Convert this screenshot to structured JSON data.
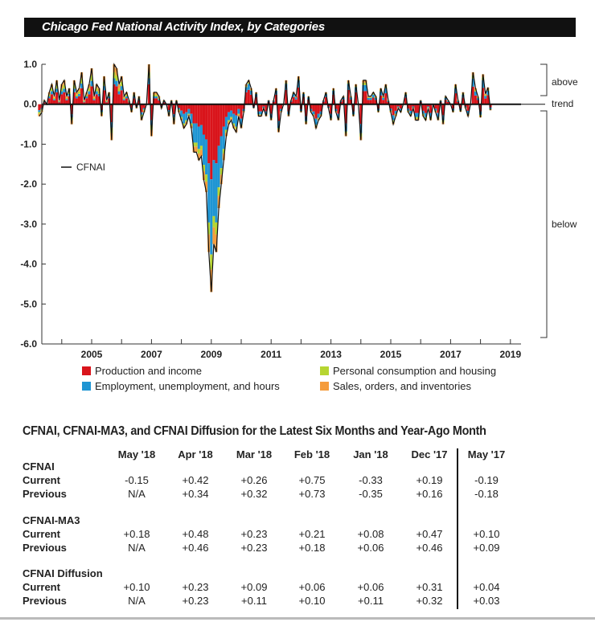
{
  "title": "Chicago Fed National Activity Index, by Categories",
  "chart_data": {
    "type": "bar",
    "stacked": true,
    "title": "Chicago Fed National Activity Index, by Categories",
    "start": {
      "year": 2003,
      "month": 4
    },
    "ylim": [
      -6.0,
      1.0
    ],
    "yticks": [
      "1.0",
      "0.0",
      "-1.0",
      "-2.0",
      "-3.0",
      "-4.0",
      "-5.0",
      "-6.0"
    ],
    "ytick_values": [
      1,
      0,
      -1,
      -2,
      -3,
      -4,
      -5,
      -6
    ],
    "xticks": [
      "2005",
      "2007",
      "2009",
      "2011",
      "2013",
      "2015",
      "2017",
      "2019"
    ],
    "xtick_values": [
      2005,
      2007,
      2009,
      2011,
      2013,
      2015,
      2017,
      2019
    ],
    "xlim": [
      2003.35,
      2019.4
    ],
    "grid": false,
    "line_label": "CFNAI",
    "legend": [
      {
        "name": "Production and income",
        "color": "#d9141b"
      },
      {
        "name": "Employment, unemployment, and hours",
        "color": "#1f95d3"
      },
      {
        "name": "Personal consumption and housing",
        "color": "#b6d531"
      },
      {
        "name": "Sales, orders, and inventories",
        "color": "#f59c3c"
      }
    ],
    "side_labels": {
      "above": "above",
      "trend": "trend",
      "below": "below"
    },
    "cfnai": [
      -0.3,
      -0.2,
      0.1,
      0.0,
      0.3,
      0.5,
      0.2,
      0.6,
      0.1,
      0.5,
      0.6,
      0.2,
      0.4,
      -0.5,
      0.6,
      0.3,
      0.4,
      0.8,
      0.1,
      0.3,
      0.5,
      0.9,
      0.2,
      0.5,
      0.4,
      -0.3,
      0.7,
      0.1,
      0.3,
      -0.9,
      1.0,
      0.9,
      0.5,
      0.7,
      0.2,
      0.3,
      0.1,
      -0.2,
      0.3,
      -0.1,
      0.2,
      -0.4,
      -0.2,
      0.0,
      1.0,
      -0.8,
      0.3,
      0.3,
      0.2,
      -0.1,
      0.1,
      0.0,
      -0.3,
      0.1,
      -0.5,
      0.1,
      -0.2,
      -0.4,
      -0.6,
      -0.5,
      -0.3,
      -0.6,
      -1.2,
      -1.2,
      -1.4,
      -1.3,
      -1.9,
      -2.2,
      -3.7,
      -4.7,
      -3.5,
      -3.7,
      -2.6,
      -2.0,
      -1.4,
      -0.8,
      -0.5,
      -0.4,
      -0.6,
      -0.7,
      -0.3,
      -0.6,
      -0.2,
      0.5,
      0.6,
      0.4,
      -0.1,
      0.3,
      -0.3,
      -0.3,
      -0.1,
      -0.3,
      0.1,
      -0.4,
      0.1,
      0.4,
      -0.7,
      -0.2,
      0.0,
      0.6,
      -0.3,
      0.1,
      0.3,
      0.2,
      0.7,
      -0.2,
      0.3,
      -0.5,
      0.2,
      -0.2,
      -0.3,
      -0.6,
      -0.4,
      -0.3,
      0.1,
      0.3,
      -0.1,
      -0.4,
      0.4,
      -0.2,
      -0.4,
      0.1,
      0.2,
      -0.8,
      0.6,
      0.2,
      -0.3,
      0.5,
      0.0,
      -0.9,
      0.6,
      0.6,
      0.2,
      0.2,
      0.3,
      0.2,
      -0.2,
      0.4,
      0.2,
      0.5,
      0.1,
      -0.2,
      -0.5,
      -0.3,
      -0.1,
      -0.2,
      0.0,
      0.3,
      -0.2,
      -0.3,
      -0.1,
      -0.4,
      -0.4,
      0.1,
      -0.3,
      -0.4,
      -0.1,
      -0.4,
      0.0,
      -0.2,
      -0.4,
      0.1,
      -0.5,
      0.2,
      0.1,
      0.0,
      -0.2,
      0.5,
      0.1,
      -0.19,
      0.3,
      -0.1,
      -0.3,
      0.0,
      0.8,
      0.4,
      0.19,
      -0.33,
      0.75,
      0.26,
      0.42,
      -0.15
    ],
    "component_shares": [
      {
        "from_year": 2003,
        "shares": [
          0.5,
          0.15,
          0.15,
          0.2
        ]
      },
      {
        "from_year": 2008,
        "shares": [
          0.4,
          0.4,
          0.08,
          0.12
        ]
      },
      {
        "from_year": 2010,
        "shares": [
          0.6,
          0.25,
          0.05,
          0.1
        ]
      },
      {
        "from_year": 2014,
        "shares": [
          0.55,
          0.25,
          0.1,
          0.1
        ]
      }
    ]
  },
  "table": {
    "title": "CFNAI, CFNAI-MA3, and CFNAI Diffusion for the Latest Six Months and Year-Ago Month",
    "columns": [
      "May '18",
      "Apr '18",
      "Mar '18",
      "Feb '18",
      "Jan '18",
      "Dec '17",
      "May '17"
    ],
    "sections": [
      {
        "name": "CFNAI",
        "rows": [
          {
            "label": "Current",
            "values": [
              "-0.15",
              "+0.42",
              "+0.26",
              "+0.75",
              "-0.33",
              "+0.19",
              "-0.19"
            ]
          },
          {
            "label": "Previous",
            "values": [
              "N/A",
              "+0.34",
              "+0.32",
              "+0.73",
              "-0.35",
              "+0.16",
              "-0.18"
            ]
          }
        ]
      },
      {
        "name": "CFNAI-MA3",
        "rows": [
          {
            "label": "Current",
            "values": [
              "+0.18",
              "+0.48",
              "+0.23",
              "+0.21",
              "+0.08",
              "+0.47",
              "+0.10"
            ]
          },
          {
            "label": "Previous",
            "values": [
              "N/A",
              "+0.46",
              "+0.23",
              "+0.18",
              "+0.06",
              "+0.46",
              "+0.09"
            ]
          }
        ]
      },
      {
        "name": "CFNAI Diffusion",
        "rows": [
          {
            "label": "Current",
            "values": [
              "+0.10",
              "+0.23",
              "+0.09",
              "+0.06",
              "+0.06",
              "+0.31",
              "+0.04"
            ]
          },
          {
            "label": "Previous",
            "values": [
              "N/A",
              "+0.23",
              "+0.11",
              "+0.10",
              "+0.11",
              "+0.32",
              "+0.03"
            ]
          }
        ]
      }
    ]
  }
}
